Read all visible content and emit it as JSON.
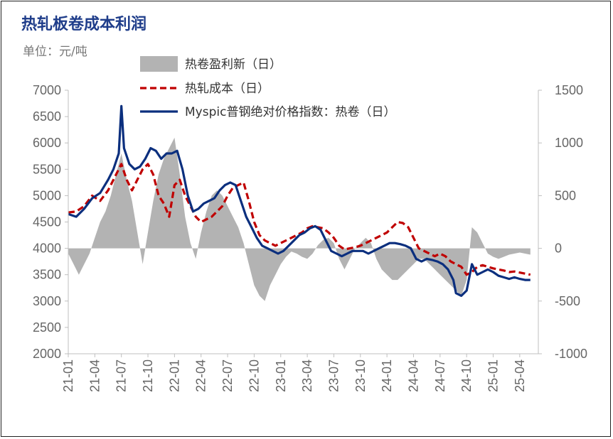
{
  "chart_data": {
    "type": "line",
    "title": "热轧板卷成本利润",
    "unit_label": "单位：元/吨",
    "left_axis": {
      "ylim": [
        2000,
        7000
      ],
      "ticks": [
        2000,
        2500,
        3000,
        3500,
        4000,
        4500,
        5000,
        5500,
        6000,
        6500,
        7000
      ],
      "tick_labels": [
        "2000",
        "2500",
        "3000",
        "3500",
        "4000",
        "4500",
        "5000",
        "5500",
        "6000",
        "6500",
        "7000"
      ]
    },
    "right_axis": {
      "ylim": [
        -1000,
        1500
      ],
      "ticks": [
        -1000,
        -500,
        0,
        500,
        1000,
        1500
      ],
      "tick_labels": [
        "-1000",
        "-500",
        "0",
        "500",
        "1000",
        "1500"
      ]
    },
    "x_tick_labels": [
      "21-01",
      "21-04",
      "21-07",
      "21-10",
      "22-01",
      "22-04",
      "22-07",
      "22-10",
      "23-01",
      "23-04",
      "23-07",
      "23-10",
      "24-01",
      "24-04",
      "24-07",
      "24-10",
      "25-01",
      "25-04"
    ],
    "x_range": [
      0,
      17.7
    ],
    "legend": "top",
    "series": [
      {
        "name": "热卷盈利新（日）",
        "kind": "area",
        "axis": "right",
        "color": "#b3b3b3",
        "points": [
          [
            0,
            -50
          ],
          [
            0.2,
            -150
          ],
          [
            0.4,
            -250
          ],
          [
            0.6,
            -150
          ],
          [
            0.8,
            -50
          ],
          [
            1.0,
            100
          ],
          [
            1.2,
            250
          ],
          [
            1.4,
            350
          ],
          [
            1.6,
            500
          ],
          [
            1.8,
            700
          ],
          [
            2.0,
            900
          ],
          [
            2.2,
            650
          ],
          [
            2.4,
            450
          ],
          [
            2.6,
            150
          ],
          [
            2.8,
            -150
          ],
          [
            3.0,
            150
          ],
          [
            3.2,
            450
          ],
          [
            3.4,
            700
          ],
          [
            3.6,
            850
          ],
          [
            3.8,
            950
          ],
          [
            4.0,
            1050
          ],
          [
            4.2,
            700
          ],
          [
            4.4,
            300
          ],
          [
            4.6,
            50
          ],
          [
            4.8,
            -100
          ],
          [
            5.0,
            150
          ],
          [
            5.2,
            350
          ],
          [
            5.4,
            500
          ],
          [
            5.6,
            550
          ],
          [
            5.8,
            500
          ],
          [
            6.0,
            400
          ],
          [
            6.2,
            300
          ],
          [
            6.4,
            200
          ],
          [
            6.6,
            50
          ],
          [
            6.8,
            -150
          ],
          [
            7.0,
            -350
          ],
          [
            7.2,
            -450
          ],
          [
            7.4,
            -500
          ],
          [
            7.6,
            -350
          ],
          [
            7.8,
            -250
          ],
          [
            8.0,
            -150
          ],
          [
            8.2,
            -80
          ],
          [
            8.4,
            -30
          ],
          [
            8.6,
            -50
          ],
          [
            8.8,
            -80
          ],
          [
            9.0,
            -100
          ],
          [
            9.2,
            -50
          ],
          [
            9.4,
            30
          ],
          [
            9.6,
            80
          ],
          [
            9.8,
            100
          ],
          [
            10.0,
            50
          ],
          [
            10.2,
            -100
          ],
          [
            10.4,
            -200
          ],
          [
            10.6,
            -100
          ],
          [
            10.8,
            0
          ],
          [
            11.0,
            50
          ],
          [
            11.2,
            100
          ],
          [
            11.4,
            50
          ],
          [
            11.6,
            -100
          ],
          [
            11.8,
            -200
          ],
          [
            12.0,
            -250
          ],
          [
            12.2,
            -300
          ],
          [
            12.4,
            -300
          ],
          [
            12.6,
            -250
          ],
          [
            12.8,
            -200
          ],
          [
            13.0,
            -150
          ],
          [
            13.2,
            -100
          ],
          [
            13.4,
            -100
          ],
          [
            13.6,
            -150
          ],
          [
            13.8,
            -200
          ],
          [
            14.0,
            -250
          ],
          [
            14.2,
            -300
          ],
          [
            14.4,
            -350
          ],
          [
            14.6,
            -400
          ],
          [
            14.8,
            -450
          ],
          [
            15.0,
            -300
          ],
          [
            15.2,
            200
          ],
          [
            15.4,
            150
          ],
          [
            15.6,
            50
          ],
          [
            15.8,
            -50
          ],
          [
            16.0,
            -80
          ],
          [
            16.2,
            -100
          ],
          [
            16.4,
            -80
          ],
          [
            16.6,
            -60
          ],
          [
            16.8,
            -50
          ],
          [
            17.0,
            -40
          ],
          [
            17.2,
            -50
          ],
          [
            17.4,
            -60
          ]
        ]
      },
      {
        "name": "热轧成本（日）",
        "kind": "line",
        "axis": "left",
        "style": "dashed",
        "color": "#c00000",
        "points": [
          [
            0,
            4680
          ],
          [
            0.3,
            4700
          ],
          [
            0.6,
            4800
          ],
          [
            0.9,
            5000
          ],
          [
            1.2,
            4900
          ],
          [
            1.5,
            5100
          ],
          [
            1.8,
            5400
          ],
          [
            2.0,
            5600
          ],
          [
            2.2,
            5300
          ],
          [
            2.4,
            5100
          ],
          [
            2.6,
            5300
          ],
          [
            2.8,
            5500
          ],
          [
            3.0,
            5600
          ],
          [
            3.2,
            5400
          ],
          [
            3.4,
            5000
          ],
          [
            3.6,
            4850
          ],
          [
            3.8,
            4600
          ],
          [
            4.0,
            5200
          ],
          [
            4.2,
            5300
          ],
          [
            4.4,
            5000
          ],
          [
            4.6,
            4800
          ],
          [
            4.8,
            4600
          ],
          [
            5.0,
            4500
          ],
          [
            5.2,
            4550
          ],
          [
            5.4,
            4600
          ],
          [
            5.6,
            4700
          ],
          [
            5.8,
            4800
          ],
          [
            6.0,
            5000
          ],
          [
            6.2,
            5150
          ],
          [
            6.4,
            5200
          ],
          [
            6.6,
            5250
          ],
          [
            6.8,
            4900
          ],
          [
            7.0,
            4500
          ],
          [
            7.2,
            4250
          ],
          [
            7.4,
            4150
          ],
          [
            7.6,
            4100
          ],
          [
            7.8,
            4050
          ],
          [
            8.0,
            4100
          ],
          [
            8.2,
            4150
          ],
          [
            8.4,
            4200
          ],
          [
            8.6,
            4250
          ],
          [
            8.8,
            4300
          ],
          [
            9.0,
            4380
          ],
          [
            9.2,
            4420
          ],
          [
            9.4,
            4400
          ],
          [
            9.6,
            4380
          ],
          [
            9.8,
            4300
          ],
          [
            10.0,
            4200
          ],
          [
            10.2,
            4050
          ],
          [
            10.4,
            3980
          ],
          [
            10.6,
            4000
          ],
          [
            10.8,
            4020
          ],
          [
            11.0,
            4050
          ],
          [
            11.2,
            4100
          ],
          [
            11.4,
            4150
          ],
          [
            11.6,
            4200
          ],
          [
            11.8,
            4250
          ],
          [
            12.0,
            4300
          ],
          [
            12.2,
            4400
          ],
          [
            12.4,
            4500
          ],
          [
            12.6,
            4480
          ],
          [
            12.8,
            4400
          ],
          [
            13.0,
            4200
          ],
          [
            13.2,
            4000
          ],
          [
            13.4,
            3950
          ],
          [
            13.6,
            3900
          ],
          [
            13.8,
            3850
          ],
          [
            14.0,
            3900
          ],
          [
            14.2,
            3850
          ],
          [
            14.4,
            3750
          ],
          [
            14.6,
            3700
          ],
          [
            14.8,
            3650
          ],
          [
            15.0,
            3500
          ],
          [
            15.2,
            3550
          ],
          [
            15.4,
            3650
          ],
          [
            15.6,
            3680
          ],
          [
            15.8,
            3650
          ],
          [
            16.0,
            3620
          ],
          [
            16.2,
            3600
          ],
          [
            16.4,
            3580
          ],
          [
            16.6,
            3550
          ],
          [
            16.8,
            3560
          ],
          [
            17.0,
            3540
          ],
          [
            17.2,
            3520
          ],
          [
            17.4,
            3500
          ]
        ]
      },
      {
        "name": "Myspic普钢绝对价格指数：热卷（日）",
        "kind": "line",
        "axis": "left",
        "style": "solid",
        "color": "#0b2f7e",
        "points": [
          [
            0,
            4650
          ],
          [
            0.3,
            4600
          ],
          [
            0.6,
            4750
          ],
          [
            0.9,
            4950
          ],
          [
            1.2,
            5050
          ],
          [
            1.5,
            5300
          ],
          [
            1.7,
            5500
          ],
          [
            1.9,
            5800
          ],
          [
            2.0,
            6700
          ],
          [
            2.1,
            5900
          ],
          [
            2.3,
            5600
          ],
          [
            2.5,
            5500
          ],
          [
            2.7,
            5550
          ],
          [
            2.9,
            5700
          ],
          [
            3.1,
            5900
          ],
          [
            3.3,
            5850
          ],
          [
            3.5,
            5700
          ],
          [
            3.7,
            5800
          ],
          [
            3.9,
            5800
          ],
          [
            4.1,
            5850
          ],
          [
            4.3,
            5500
          ],
          [
            4.5,
            5000
          ],
          [
            4.7,
            4700
          ],
          [
            4.9,
            4750
          ],
          [
            5.1,
            4850
          ],
          [
            5.3,
            4900
          ],
          [
            5.5,
            4950
          ],
          [
            5.7,
            5100
          ],
          [
            5.9,
            5200
          ],
          [
            6.1,
            5250
          ],
          [
            6.3,
            5200
          ],
          [
            6.5,
            4900
          ],
          [
            6.7,
            4600
          ],
          [
            6.9,
            4400
          ],
          [
            7.1,
            4200
          ],
          [
            7.3,
            4050
          ],
          [
            7.5,
            4000
          ],
          [
            7.7,
            3950
          ],
          [
            7.9,
            3900
          ],
          [
            8.1,
            3950
          ],
          [
            8.3,
            4050
          ],
          [
            8.5,
            4150
          ],
          [
            8.7,
            4250
          ],
          [
            8.9,
            4300
          ],
          [
            9.1,
            4380
          ],
          [
            9.3,
            4420
          ],
          [
            9.5,
            4350
          ],
          [
            9.7,
            4150
          ],
          [
            9.9,
            3950
          ],
          [
            10.1,
            3900
          ],
          [
            10.3,
            3850
          ],
          [
            10.5,
            3900
          ],
          [
            10.7,
            3950
          ],
          [
            10.9,
            3950
          ],
          [
            11.1,
            3950
          ],
          [
            11.3,
            3900
          ],
          [
            11.5,
            3950
          ],
          [
            11.7,
            4000
          ],
          [
            11.9,
            4050
          ],
          [
            12.1,
            4100
          ],
          [
            12.3,
            4100
          ],
          [
            12.5,
            4080
          ],
          [
            12.7,
            4050
          ],
          [
            12.9,
            4000
          ],
          [
            13.1,
            3800
          ],
          [
            13.3,
            3750
          ],
          [
            13.5,
            3800
          ],
          [
            13.7,
            3780
          ],
          [
            13.9,
            3750
          ],
          [
            14.1,
            3700
          ],
          [
            14.3,
            3600
          ],
          [
            14.5,
            3400
          ],
          [
            14.6,
            3150
          ],
          [
            14.8,
            3100
          ],
          [
            15.0,
            3200
          ],
          [
            15.2,
            3700
          ],
          [
            15.4,
            3500
          ],
          [
            15.6,
            3550
          ],
          [
            15.8,
            3600
          ],
          [
            16.0,
            3550
          ],
          [
            16.2,
            3480
          ],
          [
            16.4,
            3450
          ],
          [
            16.6,
            3420
          ],
          [
            16.8,
            3450
          ],
          [
            17.0,
            3420
          ],
          [
            17.2,
            3400
          ],
          [
            17.4,
            3400
          ]
        ]
      }
    ]
  }
}
